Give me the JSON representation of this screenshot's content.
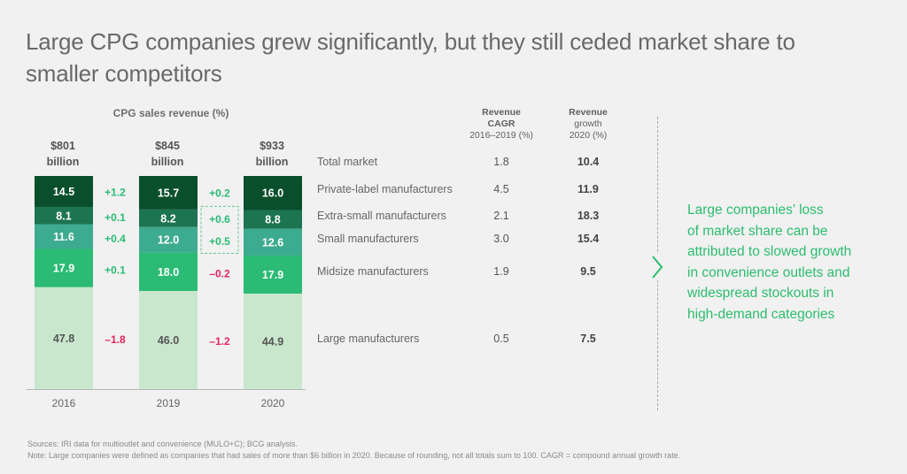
{
  "title": "Large CPG companies grew significantly, but they still ceded market share to smaller competitors",
  "chart_data": {
    "type": "bar",
    "stacked": true,
    "title": "CPG sales revenue (%)",
    "categories": [
      "2016",
      "2019",
      "2020"
    ],
    "totals": [
      "$801 billion",
      "$845 billion",
      "$933 billion"
    ],
    "series": [
      {
        "name": "Large manufacturers",
        "values": [
          47.8,
          46.0,
          44.9
        ],
        "color": "#c9e7cd",
        "label_color": "#555555"
      },
      {
        "name": "Midsize manufacturers",
        "values": [
          17.9,
          18.0,
          17.9
        ],
        "color": "#2bbb74",
        "label_color": "#ffffff"
      },
      {
        "name": "Small manufacturers",
        "values": [
          11.6,
          12.0,
          12.6
        ],
        "color": "#3dab8f",
        "label_color": "#ffffff"
      },
      {
        "name": "Extra-small manufacturers",
        "values": [
          8.1,
          8.2,
          8.8
        ],
        "color": "#1d7451",
        "label_color": "#ffffff"
      },
      {
        "name": "Private-label manufacturers",
        "values": [
          14.5,
          15.7,
          16.0
        ],
        "color": "#0a4f2c",
        "label_color": "#ffffff"
      }
    ],
    "changes": [
      {
        "series": "Private-label manufacturers",
        "values": [
          "+1.2",
          "+0.2"
        ]
      },
      {
        "series": "Extra-small manufacturers",
        "values": [
          "+0.1",
          "+0.6"
        ]
      },
      {
        "series": "Small manufacturers",
        "values": [
          "+0.4",
          "+0.5"
        ]
      },
      {
        "series": "Midsize manufacturers",
        "values": [
          "+0.1",
          "–0.2"
        ]
      },
      {
        "series": "Large manufacturers",
        "values": [
          "–1.8",
          "–1.2"
        ]
      }
    ],
    "highlighted_changes": [
      "+0.6",
      "+0.5"
    ],
    "positive_color": "#2bbb74",
    "negative_color": "#e0245e",
    "ylim": [
      0,
      100
    ]
  },
  "table": {
    "headers": {
      "cagr": [
        "Revenue",
        "CAGR",
        "2016–2019 (%)"
      ],
      "growth": [
        "Revenue",
        "growth",
        "2020 (%)"
      ]
    },
    "rows": [
      {
        "label": "Total market",
        "cagr": "1.8",
        "growth": "10.4"
      },
      {
        "label": "Private-label manufacturers",
        "cagr": "4.5",
        "growth": "11.9"
      },
      {
        "label": "Extra-small manufacturers",
        "cagr": "2.1",
        "growth": "18.3"
      },
      {
        "label": "Small manufacturers",
        "cagr": "3.0",
        "growth": "15.4"
      },
      {
        "label": "Midsize manufacturers",
        "cagr": "1.9",
        "growth": "9.5"
      },
      {
        "label": "Large manufacturers",
        "cagr": "0.5",
        "growth": "7.5"
      }
    ]
  },
  "callout": {
    "icon": "chevron-right-icon",
    "lines": [
      "Large companies’ loss",
      "of market share can be",
      "attributed to slowed growth",
      "in convenience outlets and",
      "widespread stockouts in",
      "high-demand categories"
    ],
    "color": "#2dbc6f"
  },
  "footnotes": {
    "sources": "Sources: IRI data for multioutlet and convenience (MULO+C); BCG analysis.",
    "note": "Note: Large companies were defined as companies that had sales of more than $6 billion in 2020. Because of rounding, not all totals sum to 100. CAGR = compound annual growth rate."
  }
}
